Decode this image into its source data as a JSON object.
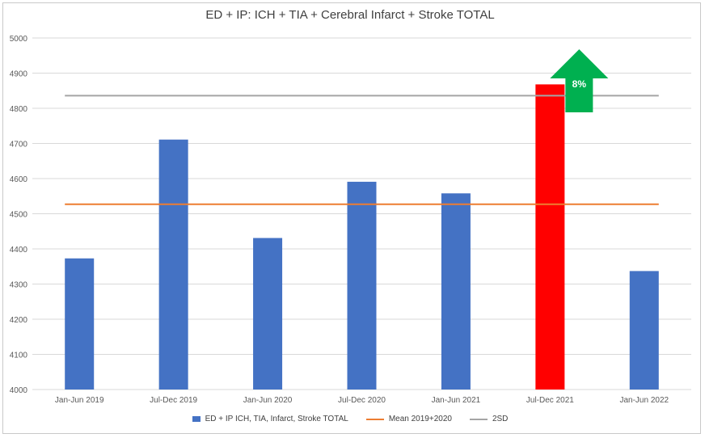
{
  "chart_data": {
    "type": "bar",
    "title": "ED + IP: ICH + TIA + Cerebral Infarct + Stroke TOTAL",
    "categories": [
      "Jan-Jun 2019",
      "Jul-Dec 2019",
      "Jan-Jun 2020",
      "Jul-Dec 2020",
      "Jan-Jun 2021",
      "Jul-Dec 2021",
      "Jan-Jun 2022"
    ],
    "series": [
      {
        "name": "ED + IP ICH, TIA, Infarct, Stroke TOTAL",
        "type": "bar",
        "color": "#4472c4",
        "highlight_color": "#ff0000",
        "highlight_index": 5,
        "values": [
          4373,
          4711,
          4431,
          4591,
          4558,
          4868,
          4337
        ]
      },
      {
        "name": "Mean 2019+2020",
        "type": "line",
        "color": "#ed7d31",
        "values": [
          4527,
          4527,
          4527,
          4527,
          4527,
          4527,
          4527
        ]
      },
      {
        "name": "2SD",
        "type": "line",
        "color": "#a5a5a5",
        "values": [
          4836,
          4836,
          4836,
          4836,
          4836,
          4836,
          4836
        ]
      }
    ],
    "ylim": [
      4000,
      5000
    ],
    "yticks": [
      4000,
      4100,
      4200,
      4300,
      4400,
      4500,
      4600,
      4700,
      4800,
      4900,
      5000
    ],
    "grid": true,
    "legend_position": "bottom",
    "annotation": {
      "text": "8%",
      "category_index": 5,
      "shape": "up-arrow",
      "color": "#00b050"
    }
  }
}
